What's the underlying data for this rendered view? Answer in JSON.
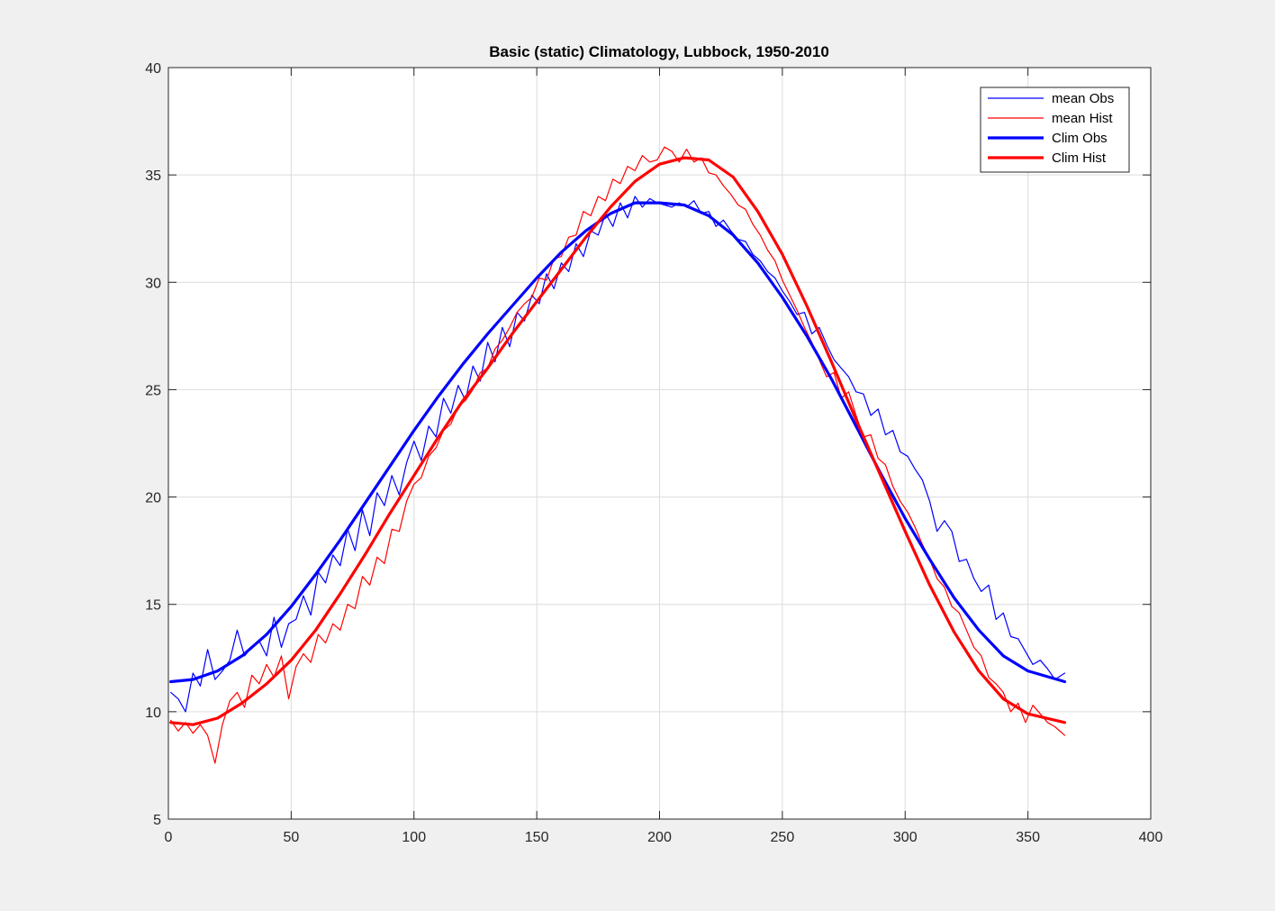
{
  "chart_data": {
    "type": "line",
    "title": "Basic (static) Climatology, Lubbock, 1950-2010",
    "xlabel": "",
    "ylabel": "",
    "xlim": [
      0,
      400
    ],
    "ylim": [
      5,
      40
    ],
    "x_ticks": [
      0,
      50,
      100,
      150,
      200,
      250,
      300,
      350,
      400
    ],
    "y_ticks": [
      5,
      10,
      15,
      20,
      25,
      30,
      35,
      40
    ],
    "grid": true,
    "legend_position": "top-right",
    "colors": {
      "blue": "#0000ff",
      "red": "#ff0000",
      "background": "#f0f0f0",
      "axes": "#ffffff"
    },
    "series": [
      {
        "name": "mean Obs",
        "color": "#0000ff",
        "style": "thin",
        "x": [
          1,
          4,
          7,
          10,
          13,
          16,
          19,
          22,
          25,
          28,
          31,
          34,
          37,
          40,
          43,
          46,
          49,
          52,
          55,
          58,
          61,
          64,
          67,
          70,
          73,
          76,
          79,
          82,
          85,
          88,
          91,
          94,
          97,
          100,
          103,
          106,
          109,
          112,
          115,
          118,
          121,
          124,
          127,
          130,
          133,
          136,
          139,
          142,
          145,
          148,
          151,
          154,
          157,
          160,
          163,
          166,
          169,
          172,
          175,
          178,
          181,
          184,
          187,
          190,
          193,
          196,
          199,
          202,
          205,
          208,
          211,
          214,
          217,
          220,
          223,
          226,
          229,
          232,
          235,
          238,
          241,
          244,
          247,
          250,
          253,
          256,
          259,
          262,
          265,
          268,
          271,
          274,
          277,
          280,
          283,
          286,
          289,
          292,
          295,
          298,
          301,
          304,
          307,
          310,
          313,
          316,
          319,
          322,
          325,
          328,
          331,
          334,
          337,
          340,
          343,
          346,
          349,
          352,
          355,
          358,
          361,
          365
        ],
        "y": [
          10.9,
          10.6,
          10.0,
          11.8,
          11.2,
          12.9,
          11.5,
          11.9,
          12.4,
          13.8,
          12.6,
          13.0,
          13.3,
          12.6,
          14.4,
          13.0,
          14.1,
          14.3,
          15.4,
          14.5,
          16.5,
          16.0,
          17.3,
          16.8,
          18.5,
          17.5,
          19.4,
          18.2,
          20.2,
          19.6,
          21.0,
          20.1,
          21.6,
          22.6,
          21.7,
          23.3,
          22.8,
          24.6,
          23.9,
          25.2,
          24.5,
          26.1,
          25.4,
          27.2,
          26.3,
          27.9,
          27.0,
          28.6,
          28.2,
          29.4,
          29.0,
          30.4,
          29.7,
          30.9,
          30.5,
          31.8,
          31.2,
          32.4,
          32.2,
          33.2,
          32.6,
          33.7,
          33.0,
          34.0,
          33.5,
          33.9,
          33.7,
          33.6,
          33.5,
          33.7,
          33.5,
          33.8,
          33.2,
          33.3,
          32.6,
          32.9,
          32.4,
          32.0,
          31.9,
          31.3,
          31.0,
          30.5,
          30.2,
          29.6,
          29.1,
          28.5,
          28.6,
          27.6,
          27.9,
          27.1,
          26.4,
          26.0,
          25.6,
          24.9,
          24.8,
          23.8,
          24.1,
          22.9,
          23.1,
          22.1,
          21.9,
          21.3,
          20.8,
          19.8,
          18.4,
          18.9,
          18.4,
          17.0,
          17.1,
          16.2,
          15.6,
          15.9,
          14.3,
          14.6,
          13.5,
          13.4,
          12.8,
          12.2,
          12.4,
          12.0,
          11.5,
          11.8
        ]
      },
      {
        "name": "mean Hist",
        "color": "#ff0000",
        "style": "thin",
        "x": [
          1,
          4,
          7,
          10,
          13,
          16,
          19,
          22,
          25,
          28,
          31,
          34,
          37,
          40,
          43,
          46,
          49,
          52,
          55,
          58,
          61,
          64,
          67,
          70,
          73,
          76,
          79,
          82,
          85,
          88,
          91,
          94,
          97,
          100,
          103,
          106,
          109,
          112,
          115,
          118,
          121,
          124,
          127,
          130,
          133,
          136,
          139,
          142,
          145,
          148,
          151,
          154,
          157,
          160,
          163,
          166,
          169,
          172,
          175,
          178,
          181,
          184,
          187,
          190,
          193,
          196,
          199,
          202,
          205,
          208,
          211,
          214,
          217,
          220,
          223,
          226,
          229,
          232,
          235,
          238,
          241,
          244,
          247,
          250,
          253,
          256,
          259,
          262,
          265,
          268,
          271,
          274,
          277,
          280,
          283,
          286,
          289,
          292,
          295,
          298,
          301,
          304,
          307,
          310,
          313,
          316,
          319,
          322,
          325,
          328,
          331,
          334,
          337,
          340,
          343,
          346,
          349,
          352,
          355,
          358,
          361,
          365
        ],
        "y": [
          9.6,
          9.1,
          9.5,
          9.0,
          9.4,
          8.9,
          7.6,
          9.4,
          10.5,
          10.9,
          10.2,
          11.7,
          11.3,
          12.2,
          11.6,
          12.6,
          10.6,
          12.1,
          12.7,
          12.3,
          13.6,
          13.2,
          14.1,
          13.8,
          15.0,
          14.8,
          16.3,
          15.9,
          17.2,
          16.9,
          18.5,
          18.4,
          19.8,
          20.6,
          20.9,
          21.9,
          22.3,
          23.1,
          23.4,
          24.2,
          24.5,
          25.0,
          25.8,
          26.0,
          26.9,
          27.3,
          27.9,
          28.6,
          29.0,
          29.3,
          30.2,
          30.1,
          31.1,
          31.2,
          32.1,
          32.2,
          33.3,
          33.1,
          34.0,
          33.8,
          34.8,
          34.6,
          35.4,
          35.2,
          35.9,
          35.6,
          35.7,
          36.3,
          36.1,
          35.6,
          36.2,
          35.6,
          35.8,
          35.1,
          35.0,
          34.5,
          34.1,
          33.6,
          33.4,
          32.7,
          32.2,
          31.5,
          31.0,
          30.1,
          29.4,
          28.7,
          27.9,
          27.2,
          26.4,
          25.6,
          25.8,
          24.6,
          24.9,
          23.8,
          22.8,
          22.9,
          21.8,
          21.5,
          20.5,
          19.8,
          19.3,
          18.6,
          17.8,
          17.1,
          16.2,
          15.8,
          14.9,
          14.6,
          13.8,
          13.0,
          12.6,
          11.6,
          11.3,
          10.9,
          10.0,
          10.4,
          9.5,
          10.3,
          9.9,
          9.5,
          9.3,
          8.9
        ]
      },
      {
        "name": "Clim Obs",
        "color": "#0000ff",
        "style": "thick",
        "x": [
          1,
          10,
          20,
          30,
          40,
          50,
          60,
          70,
          80,
          90,
          100,
          110,
          120,
          130,
          140,
          150,
          160,
          170,
          180,
          190,
          200,
          210,
          220,
          230,
          240,
          250,
          260,
          270,
          280,
          290,
          300,
          310,
          320,
          330,
          340,
          350,
          365
        ],
        "y": [
          11.4,
          11.5,
          11.9,
          12.6,
          13.6,
          14.9,
          16.4,
          18.0,
          19.7,
          21.4,
          23.1,
          24.7,
          26.2,
          27.6,
          28.9,
          30.2,
          31.4,
          32.4,
          33.2,
          33.7,
          33.7,
          33.6,
          33.1,
          32.2,
          30.9,
          29.3,
          27.5,
          25.5,
          23.3,
          21.1,
          19.0,
          17.1,
          15.3,
          13.8,
          12.6,
          11.9,
          11.4
        ]
      },
      {
        "name": "Clim Hist",
        "color": "#ff0000",
        "style": "thick",
        "x": [
          1,
          10,
          20,
          30,
          40,
          50,
          60,
          70,
          80,
          90,
          100,
          110,
          120,
          130,
          140,
          150,
          160,
          170,
          180,
          190,
          200,
          210,
          220,
          230,
          240,
          250,
          260,
          270,
          280,
          290,
          300,
          310,
          320,
          330,
          340,
          350,
          365
        ],
        "y": [
          9.5,
          9.4,
          9.7,
          10.4,
          11.3,
          12.4,
          13.8,
          15.5,
          17.3,
          19.2,
          21.0,
          22.8,
          24.5,
          26.0,
          27.6,
          29.1,
          30.6,
          32.1,
          33.5,
          34.7,
          35.5,
          35.8,
          35.7,
          34.9,
          33.3,
          31.3,
          28.9,
          26.3,
          23.6,
          21.0,
          18.4,
          15.9,
          13.7,
          11.9,
          10.6,
          9.9,
          9.5
        ]
      }
    ]
  }
}
